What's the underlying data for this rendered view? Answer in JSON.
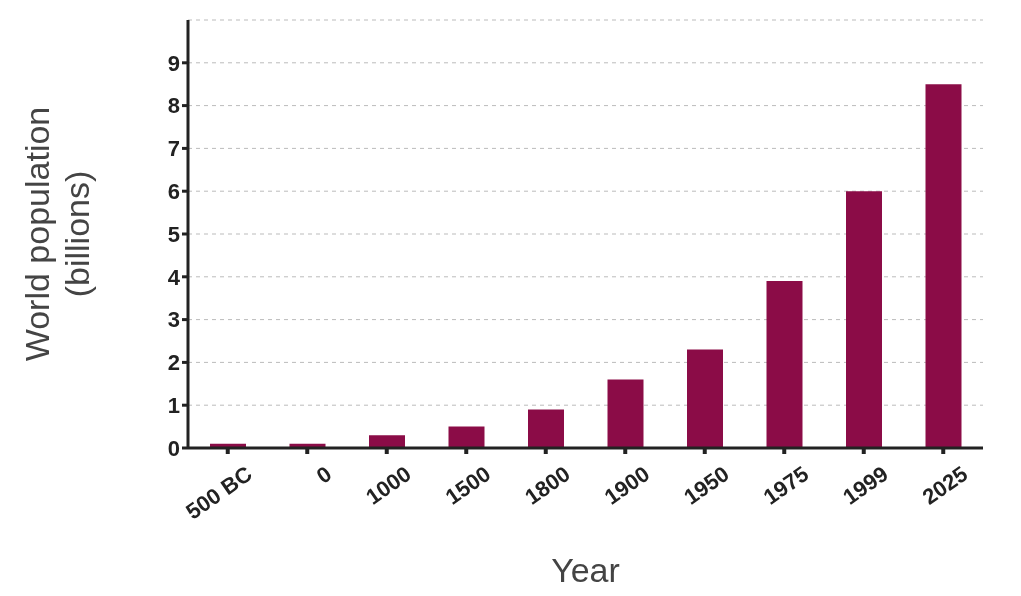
{
  "chart_data": {
    "type": "bar",
    "xlabel": "Year",
    "ylabel": "World population (billions)",
    "categories": [
      "500 BC",
      "0",
      "1000",
      "1500",
      "1800",
      "1900",
      "1950",
      "1975",
      "1999",
      "2025"
    ],
    "values": [
      0.1,
      0.1,
      0.3,
      0.5,
      0.9,
      1.6,
      2.3,
      3.9,
      6,
      8.5
    ],
    "color": "#8b0c47",
    "ylim": [
      0,
      10
    ],
    "yticks": [
      0,
      1,
      2,
      3,
      4,
      5,
      6,
      7,
      8,
      9
    ],
    "grid": "y"
  }
}
